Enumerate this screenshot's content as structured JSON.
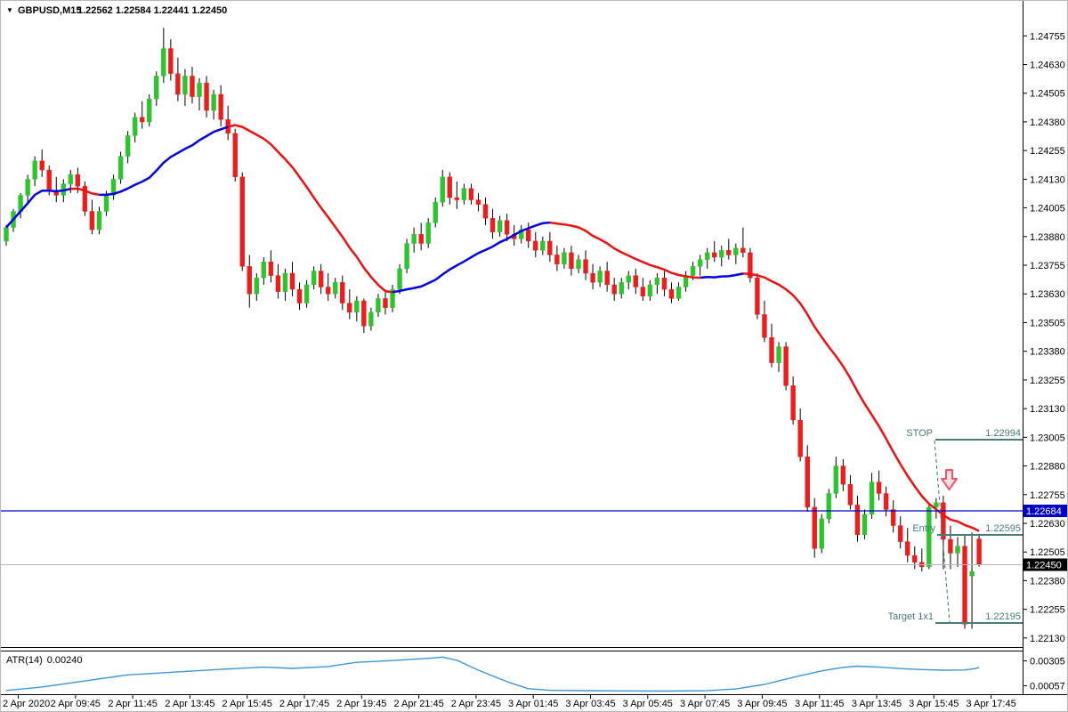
{
  "title": {
    "collapse_icon": "▼",
    "symbol_period": "GBPUSD,M15",
    "ohlc_text": "1.22562 1.22584 1.22441 1.22450"
  },
  "price_axis": {
    "labels": [
      "1.24755",
      "1.24630",
      "1.24505",
      "1.24380",
      "1.24255",
      "1.24130",
      "1.24005",
      "1.23880",
      "1.23755",
      "1.23630",
      "1.23505",
      "1.23380",
      "1.23255",
      "1.23130",
      "1.23005",
      "1.22880",
      "1.22755",
      "1.22630",
      "1.22505",
      "1.22380",
      "1.22255",
      "1.22130"
    ],
    "bid_badge": {
      "value": "1.22684",
      "color": "#0000c8"
    },
    "last_badge": {
      "value": "1.22450",
      "color": "#000000"
    }
  },
  "time_axis": {
    "labels": [
      "2 Apr 2020",
      "2 Apr 09:45",
      "2 Apr 11:45",
      "2 Apr 13:45",
      "2 Apr 15:45",
      "2 Apr 17:45",
      "2 Apr 19:45",
      "2 Apr 21:45",
      "2 Apr 23:45",
      "3 Apr 01:45",
      "3 Apr 03:45",
      "3 Apr 05:45",
      "3 Apr 07:45",
      "3 Apr 09:45",
      "3 Apr 11:45",
      "3 Apr 13:45",
      "3 Apr 15:45",
      "3 Apr 17:45"
    ]
  },
  "annotations": {
    "stop": {
      "label": "STOP",
      "value": "1.22994",
      "price": 1.22994
    },
    "entry": {
      "label": "Entry",
      "value": "1.22595",
      "price": 1.22595
    },
    "target": {
      "label": "Target 1x1",
      "value": "1.22195",
      "price": 1.22195
    },
    "line_color": "#4a7a7a",
    "arrow": "sell-down-arrow"
  },
  "indicator": {
    "name_label": "ATR(14)",
    "value": "0.00240",
    "axis_high": "0.00305",
    "axis_low": "0.00057"
  },
  "chart_data": {
    "type": "candlestick",
    "symbol": "GBPUSD",
    "timeframe": "M15",
    "last_bar": {
      "open": 1.22562,
      "high": 1.22584,
      "low": 1.22441,
      "close": 1.2245
    },
    "colors": {
      "up": "#2dc52d",
      "down": "#ee1c1c",
      "wick": "#000000",
      "ma_up": "#0000e8",
      "ma_down": "#ee1010",
      "atr": "#3c96dc",
      "bid_line": "#0000c8",
      "last_line": "#b8b8b8"
    },
    "price_axis_range": {
      "top": 1.2483,
      "bottom": 1.22013
    },
    "hlines": [
      {
        "name": "bid-line",
        "price": 1.22684
      },
      {
        "name": "last-price-line",
        "price": 1.2245
      }
    ],
    "ma": {
      "type": "sma-slope-colored",
      "period": 21
    },
    "candles": [
      [
        1.2386,
        1.2393,
        1.2384,
        1.2392
      ],
      [
        1.2392,
        1.24,
        1.239,
        1.2399
      ],
      [
        1.2399,
        1.2407,
        1.2396,
        1.2406
      ],
      [
        1.2406,
        1.2415,
        1.2403,
        1.2413
      ],
      [
        1.2413,
        1.2423,
        1.241,
        1.2421
      ],
      [
        1.2421,
        1.2426,
        1.2414,
        1.2417
      ],
      [
        1.2417,
        1.2419,
        1.2406,
        1.2408
      ],
      [
        1.2408,
        1.2414,
        1.2403,
        1.2406
      ],
      [
        1.2406,
        1.2413,
        1.2403,
        1.2411
      ],
      [
        1.2411,
        1.2417,
        1.2407,
        1.2415
      ],
      [
        1.2415,
        1.2418,
        1.2407,
        1.241
      ],
      [
        1.241,
        1.2412,
        1.2397,
        1.2399
      ],
      [
        1.2399,
        1.2404,
        1.2389,
        1.2391
      ],
      [
        1.2391,
        1.2401,
        1.2389,
        1.2399
      ],
      [
        1.2399,
        1.2408,
        1.2397,
        1.2406
      ],
      [
        1.2406,
        1.2415,
        1.2404,
        1.2413
      ],
      [
        1.2413,
        1.2425,
        1.2411,
        1.2423
      ],
      [
        1.2423,
        1.2434,
        1.242,
        1.2432
      ],
      [
        1.2432,
        1.2442,
        1.2429,
        1.244
      ],
      [
        1.244,
        1.2447,
        1.2435,
        1.2438
      ],
      [
        1.2438,
        1.245,
        1.2436,
        1.2448
      ],
      [
        1.2448,
        1.246,
        1.2445,
        1.2458
      ],
      [
        1.2458,
        1.2479,
        1.2455,
        1.247
      ],
      [
        1.247,
        1.2474,
        1.2456,
        1.2459
      ],
      [
        1.2459,
        1.2466,
        1.2447,
        1.245
      ],
      [
        1.245,
        1.2461,
        1.2445,
        1.2458
      ],
      [
        1.2458,
        1.2462,
        1.2446,
        1.2449
      ],
      [
        1.2449,
        1.2457,
        1.2443,
        1.2455
      ],
      [
        1.2455,
        1.2458,
        1.244,
        1.2443
      ],
      [
        1.2443,
        1.2452,
        1.2439,
        1.245
      ],
      [
        1.245,
        1.2454,
        1.2436,
        1.2439
      ],
      [
        1.2439,
        1.2445,
        1.243,
        1.2433
      ],
      [
        1.2433,
        1.2435,
        1.2412,
        1.2414
      ],
      [
        1.2414,
        1.2416,
        1.2373,
        1.2375
      ],
      [
        1.2375,
        1.238,
        1.2357,
        1.2363
      ],
      [
        1.2363,
        1.2372,
        1.236,
        1.237
      ],
      [
        1.237,
        1.2379,
        1.2367,
        1.2377
      ],
      [
        1.2377,
        1.2382,
        1.2368,
        1.2371
      ],
      [
        1.2371,
        1.2376,
        1.2361,
        1.2364
      ],
      [
        1.2364,
        1.2374,
        1.236,
        1.2372
      ],
      [
        1.2372,
        1.2377,
        1.2362,
        1.2365
      ],
      [
        1.2365,
        1.2368,
        1.2356,
        1.2359
      ],
      [
        1.2359,
        1.2369,
        1.2357,
        1.2367
      ],
      [
        1.2367,
        1.2375,
        1.2365,
        1.2373
      ],
      [
        1.2373,
        1.2376,
        1.2363,
        1.2366
      ],
      [
        1.2366,
        1.2372,
        1.236,
        1.2363
      ],
      [
        1.2363,
        1.237,
        1.2361,
        1.2368
      ],
      [
        1.2368,
        1.2371,
        1.2356,
        1.2359
      ],
      [
        1.2359,
        1.2365,
        1.2352,
        1.2355
      ],
      [
        1.2355,
        1.2362,
        1.2351,
        1.236
      ],
      [
        1.236,
        1.2361,
        1.2346,
        1.2349
      ],
      [
        1.2349,
        1.2357,
        1.2347,
        1.2355
      ],
      [
        1.2355,
        1.2363,
        1.2353,
        1.2361
      ],
      [
        1.2361,
        1.2365,
        1.2354,
        1.2357
      ],
      [
        1.2357,
        1.2367,
        1.2355,
        1.2365
      ],
      [
        1.2365,
        1.2376,
        1.2363,
        1.2374
      ],
      [
        1.2374,
        1.2387,
        1.2372,
        1.2385
      ],
      [
        1.2385,
        1.2392,
        1.2381,
        1.2389
      ],
      [
        1.2389,
        1.2394,
        1.2382,
        1.2385
      ],
      [
        1.2385,
        1.2396,
        1.2383,
        1.2394
      ],
      [
        1.2394,
        1.2405,
        1.2392,
        1.2403
      ],
      [
        1.2403,
        1.2417,
        1.2401,
        1.2414
      ],
      [
        1.2414,
        1.2416,
        1.2402,
        1.2405
      ],
      [
        1.2405,
        1.2412,
        1.24,
        1.2404
      ],
      [
        1.2404,
        1.2411,
        1.2402,
        1.2409
      ],
      [
        1.2409,
        1.2411,
        1.2402,
        1.2404
      ],
      [
        1.2404,
        1.2407,
        1.2399,
        1.2402
      ],
      [
        1.2402,
        1.2405,
        1.2393,
        1.2396
      ],
      [
        1.2396,
        1.24,
        1.2387,
        1.239
      ],
      [
        1.239,
        1.2397,
        1.2388,
        1.2395
      ],
      [
        1.2395,
        1.2398,
        1.2386,
        1.2389
      ],
      [
        1.2389,
        1.2393,
        1.2384,
        1.2387
      ],
      [
        1.2387,
        1.2393,
        1.2385,
        1.2391
      ],
      [
        1.2391,
        1.2394,
        1.2383,
        1.2386
      ],
      [
        1.2386,
        1.239,
        1.2379,
        1.2382
      ],
      [
        1.2382,
        1.2388,
        1.238,
        1.2386
      ],
      [
        1.2386,
        1.239,
        1.2377,
        1.238
      ],
      [
        1.238,
        1.2384,
        1.2373,
        1.2376
      ],
      [
        1.2376,
        1.2383,
        1.2374,
        1.2381
      ],
      [
        1.2381,
        1.2384,
        1.2371,
        1.2374
      ],
      [
        1.2374,
        1.238,
        1.2372,
        1.2378
      ],
      [
        1.2378,
        1.2382,
        1.2369,
        1.2372
      ],
      [
        1.2372,
        1.2376,
        1.2365,
        1.2368
      ],
      [
        1.2368,
        1.2375,
        1.2366,
        1.2373
      ],
      [
        1.2373,
        1.2377,
        1.2364,
        1.2367
      ],
      [
        1.2367,
        1.237,
        1.236,
        1.2363
      ],
      [
        1.2363,
        1.237,
        1.2361,
        1.2368
      ],
      [
        1.2368,
        1.2373,
        1.2365,
        1.2371
      ],
      [
        1.2371,
        1.2374,
        1.2363,
        1.2366
      ],
      [
        1.2366,
        1.237,
        1.236,
        1.2362
      ],
      [
        1.2362,
        1.2369,
        1.236,
        1.2367
      ],
      [
        1.2367,
        1.2372,
        1.2363,
        1.237
      ],
      [
        1.237,
        1.2373,
        1.2362,
        1.2365
      ],
      [
        1.2365,
        1.2368,
        1.2359,
        1.2361
      ],
      [
        1.2361,
        1.2368,
        1.236,
        1.2366
      ],
      [
        1.2366,
        1.2373,
        1.2364,
        1.2371
      ],
      [
        1.2371,
        1.2377,
        1.2369,
        1.2375
      ],
      [
        1.2375,
        1.238,
        1.2371,
        1.2378
      ],
      [
        1.2378,
        1.2383,
        1.2374,
        1.2381
      ],
      [
        1.2381,
        1.2386,
        1.2377,
        1.2379
      ],
      [
        1.2379,
        1.2384,
        1.2375,
        1.2382
      ],
      [
        1.2382,
        1.2387,
        1.2378,
        1.238
      ],
      [
        1.238,
        1.2385,
        1.2376,
        1.2383
      ],
      [
        1.2383,
        1.2392,
        1.2379,
        1.2381
      ],
      [
        1.2381,
        1.2383,
        1.2368,
        1.237
      ],
      [
        1.237,
        1.2372,
        1.2352,
        1.2354
      ],
      [
        1.2354,
        1.236,
        1.2342,
        1.2344
      ],
      [
        1.2344,
        1.235,
        1.2331,
        1.2333
      ],
      [
        1.2333,
        1.2342,
        1.2329,
        1.234
      ],
      [
        1.234,
        1.2342,
        1.2321,
        1.2323
      ],
      [
        1.2323,
        1.2327,
        1.2306,
        1.2308
      ],
      [
        1.2308,
        1.2313,
        1.229,
        1.2292
      ],
      [
        1.2292,
        1.2297,
        1.2268,
        1.227
      ],
      [
        1.227,
        1.2274,
        1.2248,
        1.2252
      ],
      [
        1.2252,
        1.2267,
        1.225,
        1.2265
      ],
      [
        1.2265,
        1.2278,
        1.2263,
        1.2276
      ],
      [
        1.2276,
        1.2292,
        1.2274,
        1.2288
      ],
      [
        1.2288,
        1.2291,
        1.2277,
        1.228
      ],
      [
        1.228,
        1.2284,
        1.2269,
        1.2271
      ],
      [
        1.2271,
        1.2275,
        1.2255,
        1.2258
      ],
      [
        1.2258,
        1.2269,
        1.2256,
        1.2267
      ],
      [
        1.2267,
        1.2285,
        1.2265,
        1.2281
      ],
      [
        1.2281,
        1.2286,
        1.2273,
        1.2276
      ],
      [
        1.2276,
        1.2279,
        1.2266,
        1.2269
      ],
      [
        1.2269,
        1.2273,
        1.2259,
        1.2262
      ],
      [
        1.2262,
        1.2266,
        1.2252,
        1.2255
      ],
      [
        1.2255,
        1.2261,
        1.2246,
        1.2249
      ],
      [
        1.2249,
        1.2253,
        1.2243,
        1.2246
      ],
      [
        1.2246,
        1.2252,
        1.2242,
        1.2244
      ],
      [
        1.2244,
        1.2272,
        1.2243,
        1.227
      ],
      [
        1.227,
        1.2274,
        1.2265,
        1.2272
      ],
      [
        1.2272,
        1.2275,
        1.2243,
        1.2256
      ],
      [
        1.2256,
        1.2262,
        1.2243,
        1.225
      ],
      [
        1.225,
        1.2257,
        1.2244,
        1.2253
      ],
      [
        1.2253,
        1.2258,
        1.2217,
        1.2219
      ],
      [
        1.224,
        1.2259,
        1.2217,
        1.2242
      ],
      [
        1.22562,
        1.22584,
        1.22441,
        1.2245
      ]
    ],
    "atr": {
      "period": 14,
      "current": 0.0024,
      "axis": {
        "high": 0.00305,
        "low": 0.00057
      },
      "points": [
        [
          0,
          0.0001
        ],
        [
          5,
          0.00045
        ],
        [
          11,
          0.00105
        ],
        [
          17,
          0.00165
        ],
        [
          24,
          0.00195
        ],
        [
          30,
          0.0022
        ],
        [
          36,
          0.00242
        ],
        [
          40,
          0.0023
        ],
        [
          45,
          0.00248
        ],
        [
          49,
          0.0029
        ],
        [
          54,
          0.00308
        ],
        [
          59,
          0.0033
        ],
        [
          61,
          0.00342
        ],
        [
          63,
          0.0031
        ],
        [
          66,
          0.00212
        ],
        [
          70,
          0.00098
        ],
        [
          73,
          0.00028
        ],
        [
          76,
          0.00012
        ],
        [
          81,
          8e-05
        ],
        [
          86,
          6e-05
        ],
        [
          92,
          4e-05
        ],
        [
          98,
          7e-05
        ],
        [
          102,
          0.00025
        ],
        [
          106,
          0.0007
        ],
        [
          110,
          0.0014
        ],
        [
          114,
          0.00205
        ],
        [
          117,
          0.0024
        ],
        [
          119,
          0.00252
        ],
        [
          122,
          0.00242
        ],
        [
          125,
          0.00228
        ],
        [
          128,
          0.00218
        ],
        [
          131,
          0.00212
        ],
        [
          134,
          0.00214
        ],
        [
          135.5,
          0.00228
        ],
        [
          136,
          0.0024
        ]
      ]
    }
  }
}
